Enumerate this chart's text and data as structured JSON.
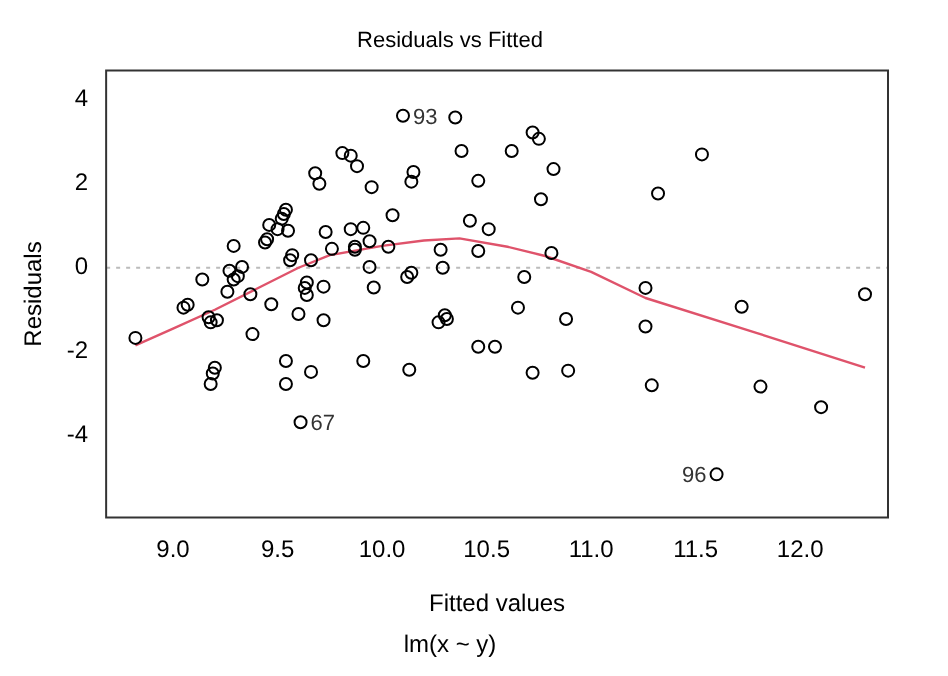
{
  "chart_data": {
    "type": "scatter",
    "title": "Residuals vs Fitted",
    "xlabel": "Fitted values",
    "ylabel": "Residuals",
    "xlim": [
      8.68,
      12.42
    ],
    "ylim": [
      -5.95,
      4.7
    ],
    "xticks": [
      {
        "value": 9,
        "label": "9.0"
      },
      {
        "value": 9.5,
        "label": "9.5"
      },
      {
        "value": 10,
        "label": "10.0"
      },
      {
        "value": 10.5,
        "label": "10.5"
      },
      {
        "value": 11,
        "label": "11.0"
      },
      {
        "value": 11.5,
        "label": "11.5"
      },
      {
        "value": 12,
        "label": "12.0"
      }
    ],
    "yticks": [
      -4,
      -2,
      0,
      2,
      4
    ],
    "grid": false,
    "legend": false,
    "marker": "circle",
    "series": [
      {
        "type": "scatter",
        "color": "#000000",
        "x": [
          8.82,
          9.05,
          9.07,
          9.14,
          9.17,
          9.18,
          9.21,
          9.18,
          9.19,
          9.2,
          9.26,
          9.27,
          9.29,
          9.31,
          9.33,
          9.29,
          9.37,
          9.38,
          9.44,
          9.45,
          9.46,
          9.47,
          9.5,
          9.52,
          9.53,
          9.54,
          9.55,
          9.54,
          9.54,
          9.56,
          9.57,
          9.6,
          9.61,
          9.63,
          9.64,
          9.64,
          9.66,
          9.66,
          9.68,
          9.7,
          9.72,
          9.72,
          9.73,
          9.76,
          9.81,
          9.85,
          9.85,
          9.87,
          9.87,
          9.88,
          9.91,
          9.91,
          9.94,
          9.94,
          9.95,
          9.96,
          10.03,
          10.05,
          10.1,
          10.12,
          10.13,
          10.14,
          10.14,
          10.15,
          10.27,
          10.28,
          10.29,
          10.3,
          10.31,
          10.35,
          10.38,
          10.42,
          10.46,
          10.46,
          10.46,
          10.51,
          10.54,
          10.62,
          10.65,
          10.68,
          10.72,
          10.72,
          10.75,
          10.76,
          10.81,
          10.82,
          10.88,
          10.89,
          11.26,
          11.26,
          11.29,
          11.32,
          11.53,
          11.6,
          11.72,
          11.81,
          12.1,
          12.31
        ],
        "values": [
          -1.67,
          -0.95,
          -0.88,
          -0.28,
          -1.18,
          -1.3,
          -1.25,
          -2.77,
          -2.52,
          -2.38,
          -0.57,
          -0.07,
          -0.28,
          -0.2,
          0.02,
          0.52,
          -0.63,
          -1.58,
          0.6,
          0.68,
          1.02,
          -0.87,
          0.92,
          1.17,
          1.28,
          1.38,
          0.88,
          -2.22,
          -2.77,
          0.18,
          0.3,
          -1.1,
          -3.68,
          -0.48,
          -0.35,
          -0.65,
          0.18,
          -2.48,
          2.25,
          2.0,
          -0.45,
          -1.25,
          0.85,
          0.45,
          2.73,
          2.67,
          0.92,
          0.5,
          0.43,
          2.42,
          0.95,
          -2.22,
          0.63,
          0.02,
          1.92,
          -0.47,
          0.5,
          1.25,
          3.62,
          -0.22,
          -2.43,
          -0.12,
          2.05,
          2.28,
          -1.3,
          0.43,
          0.0,
          -1.13,
          -1.22,
          3.58,
          2.78,
          1.12,
          2.07,
          0.4,
          -1.88,
          0.92,
          -1.88,
          2.78,
          -0.95,
          -0.22,
          3.22,
          -2.5,
          3.07,
          1.63,
          0.35,
          2.35,
          -1.22,
          -2.45,
          -0.48,
          -1.4,
          -2.8,
          1.77,
          2.7,
          -4.92,
          -0.93,
          -2.83,
          -3.32,
          -0.63
        ]
      },
      {
        "type": "line",
        "color": "#df536b",
        "marker": "none",
        "line_style": "solid",
        "x": [
          8.82,
          9.0,
          9.2,
          9.4,
          9.6,
          9.75,
          10.0,
          10.2,
          10.37,
          10.6,
          10.78,
          11.0,
          11.26,
          11.79,
          12.31
        ],
        "values": [
          -1.85,
          -1.45,
          -1.0,
          -0.5,
          0.0,
          0.3,
          0.52,
          0.65,
          0.7,
          0.5,
          0.28,
          -0.1,
          -0.72,
          -1.55,
          -2.38
        ]
      }
    ],
    "ref_lines": [
      {
        "axis": "y",
        "value": 0,
        "color": "#bbbbbb",
        "line_style": "dotted"
      }
    ],
    "annotations": [
      {
        "text": "93",
        "x": 10.1,
        "y": 3.62
      },
      {
        "text": "67",
        "x": 9.61,
        "y": -3.68
      },
      {
        "text": "96",
        "x": 11.6,
        "y": -4.92
      },
      "lm(x ~ y)"
    ]
  }
}
